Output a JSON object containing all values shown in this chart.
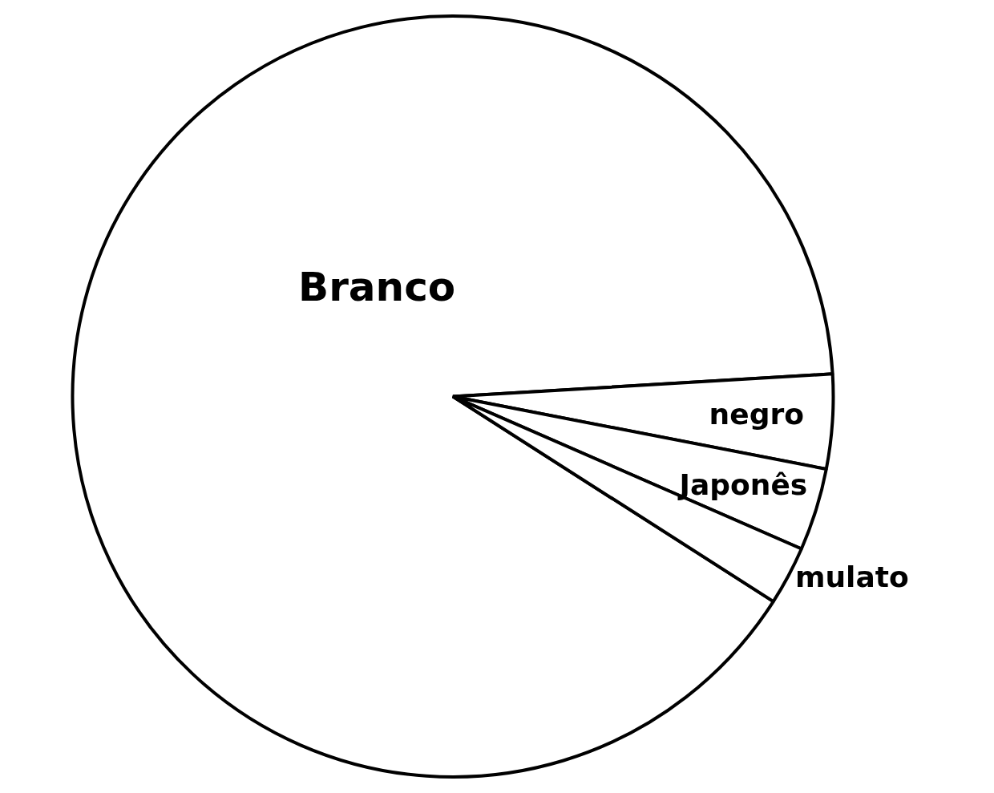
{
  "chart_data": {
    "type": "pie",
    "categories": [
      "Branco",
      "negro",
      "Japonês",
      "mulato"
    ],
    "values": [
      90,
      4,
      3.5,
      2.5
    ],
    "colors": [
      "#ffffff",
      "#ffffff",
      "#ffffff",
      "#ffffff"
    ],
    "legend": false
  }
}
